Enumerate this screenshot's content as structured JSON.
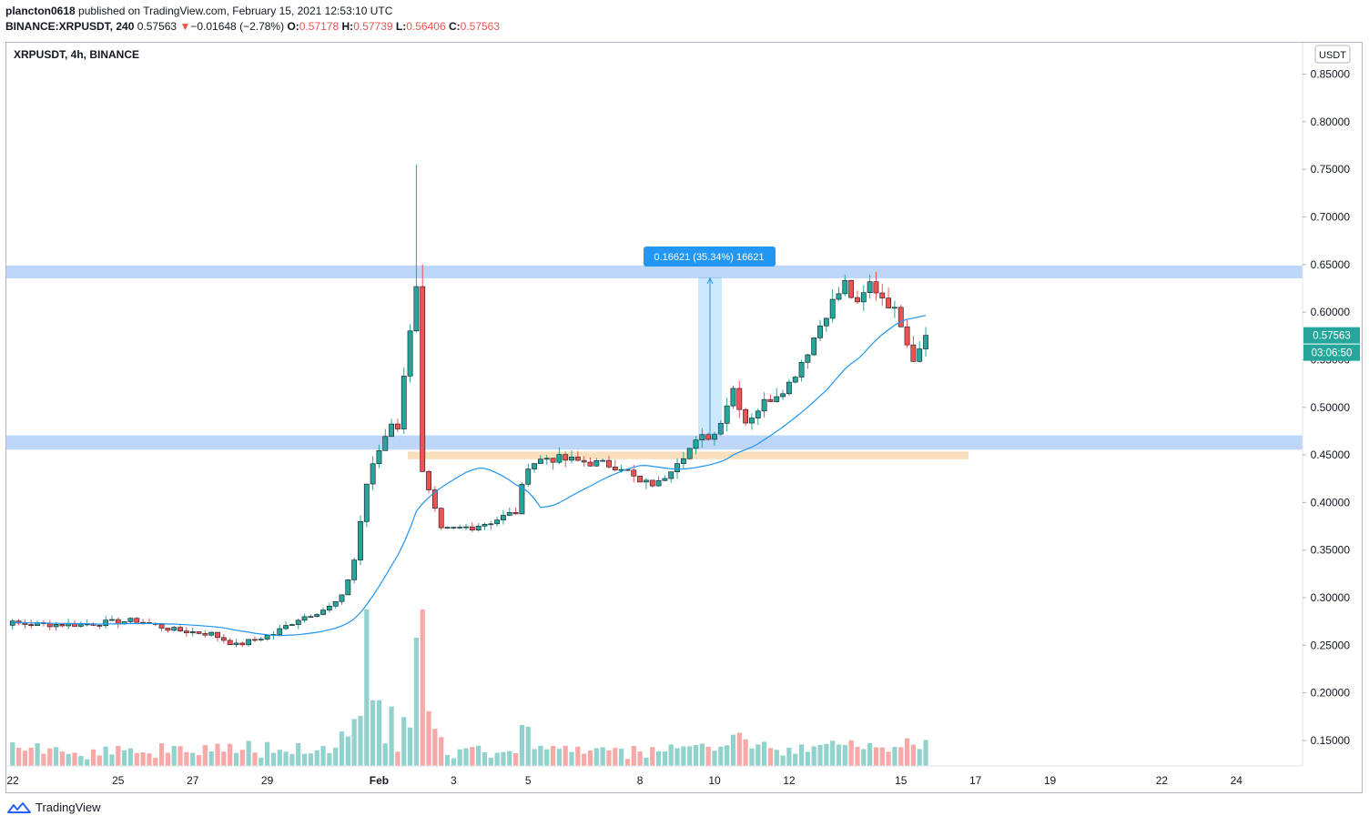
{
  "header": {
    "author": "plancton0618",
    "published_text": "published on TradingView.com, February 15, 2021 12:53:10 UTC",
    "symbol": "BINANCE:XRPUSDT, 240",
    "last_price": "0.57563",
    "change": "−0.01648 (−2.78%)",
    "open_label": "O:",
    "open": "0.57178",
    "high_label": "H:",
    "high": "0.57739",
    "low_label": "L:",
    "low": "0.56406",
    "close_label": "C:",
    "close": "0.57563"
  },
  "footer": {
    "brand": "TradingView"
  },
  "colors": {
    "up": "#26a69a",
    "down": "#ef5350",
    "ma": "#2196f3",
    "zone_blue": "#bbd4f7",
    "zone_orange": "#f9d9b0",
    "measure": "#2196f3"
  },
  "chart_data": {
    "type": "candlestick",
    "title": "XRPUSDT, 4h, BINANCE",
    "currency": "USDT",
    "y_range": [
      0.125,
      0.87
    ],
    "y_ticks": [
      "0.85000",
      "0.80000",
      "0.75000",
      "0.70000",
      "0.65000",
      "0.60000",
      "0.55000",
      "0.50000",
      "0.45000",
      "0.40000",
      "0.35000",
      "0.30000",
      "0.25000",
      "0.20000",
      "0.15000"
    ],
    "x_ticks": [
      "22",
      "25",
      "27",
      "29",
      "Feb",
      "3",
      "5",
      "8",
      "10",
      "12",
      "15",
      "17",
      "19",
      "22",
      "24"
    ],
    "price_label": "0.57563",
    "countdown_label": "03:06:50",
    "measure_label": "0.16621 (35.34%) 16621",
    "zones": [
      {
        "name": "resistance",
        "from": 0.6355,
        "to": 0.649,
        "color": "blue"
      },
      {
        "name": "support",
        "from": 0.4555,
        "to": 0.4705,
        "color": "blue"
      },
      {
        "name": "demand",
        "from": 0.4455,
        "to": 0.4535,
        "color": "orange"
      }
    ],
    "measure": {
      "from": 0.4703,
      "to": 0.6365
    },
    "anchors": [
      [
        "2021-01-21T00:00",
        0.276
      ],
      [
        "2021-01-22T16:00",
        0.272
      ],
      [
        "2021-01-24T00:00",
        0.272
      ],
      [
        "2021-01-25T12:00",
        0.276
      ],
      [
        "2021-01-26T12:00",
        0.266
      ],
      [
        "2021-01-27T12:00",
        0.262
      ],
      [
        "2021-01-28T04:00",
        0.25
      ],
      [
        "2021-01-29T04:00",
        0.262
      ],
      [
        "2021-01-29T20:00",
        0.278
      ],
      [
        "2021-01-30T16:00",
        0.29
      ],
      [
        "2021-01-31T00:00",
        0.3
      ],
      [
        "2021-01-31T08:00",
        0.34
      ],
      [
        "2021-01-31T16:00",
        0.42
      ],
      [
        "2021-02-01T00:00",
        0.455
      ],
      [
        "2021-02-01T08:00",
        0.485
      ],
      [
        "2021-02-01T12:00",
        0.48
      ],
      [
        "2021-02-01T16:00",
        0.53
      ],
      [
        "2021-02-01T20:00",
        0.585
      ],
      [
        "2021-02-02T00:00",
        0.63
      ],
      [
        "2021-02-02T04:00",
        0.43
      ],
      [
        "2021-02-02T16:00",
        0.37
      ],
      [
        "2021-02-03T12:00",
        0.375
      ],
      [
        "2021-02-04T00:00",
        0.38
      ],
      [
        "2021-02-04T16:00",
        0.39
      ],
      [
        "2021-02-05T00:00",
        0.44
      ],
      [
        "2021-02-05T12:00",
        0.447
      ],
      [
        "2021-02-06T16:00",
        0.442
      ],
      [
        "2021-02-07T12:00",
        0.438
      ],
      [
        "2021-02-08T00:00",
        0.42
      ],
      [
        "2021-02-08T12:00",
        0.42
      ],
      [
        "2021-02-09T00:00",
        0.445
      ],
      [
        "2021-02-09T16:00",
        0.468
      ],
      [
        "2021-02-10T00:00",
        0.472
      ],
      [
        "2021-02-10T12:00",
        0.52
      ],
      [
        "2021-02-10T20:00",
        0.485
      ],
      [
        "2021-02-11T08:00",
        0.505
      ],
      [
        "2021-02-12T00:00",
        0.525
      ],
      [
        "2021-02-12T12:00",
        0.56
      ],
      [
        "2021-02-13T00:00",
        0.6
      ],
      [
        "2021-02-13T12:00",
        0.63
      ],
      [
        "2021-02-13T20:00",
        0.605
      ],
      [
        "2021-02-14T04:00",
        0.63
      ],
      [
        "2021-02-14T16:00",
        0.61
      ],
      [
        "2021-02-15T00:00",
        0.59
      ],
      [
        "2021-02-15T08:00",
        0.552
      ],
      [
        "2021-02-15T16:00",
        0.5756
      ]
    ],
    "spikes": [
      [
        "2021-02-02T00:00",
        0.755
      ],
      [
        "2021-02-02T04:00",
        0.65
      ]
    ],
    "volume_spikes": [
      [
        "2021-01-31T16:00",
        1.0
      ],
      [
        "2021-01-31T20:00",
        0.42
      ],
      [
        "2021-02-01T00:00",
        0.42
      ],
      [
        "2021-02-01T08:00",
        0.38
      ],
      [
        "2021-02-02T00:00",
        0.82
      ],
      [
        "2021-02-02T04:00",
        1.0
      ],
      [
        "2021-02-02T08:00",
        0.35
      ],
      [
        "2021-01-31T08:00",
        0.3
      ],
      [
        "2021-01-31T00:00",
        0.22
      ],
      [
        "2021-02-05T00:00",
        0.25
      ],
      [
        "2021-02-10T12:00",
        0.2
      ],
      [
        "2021-02-15T00:00",
        0.12
      ]
    ]
  }
}
